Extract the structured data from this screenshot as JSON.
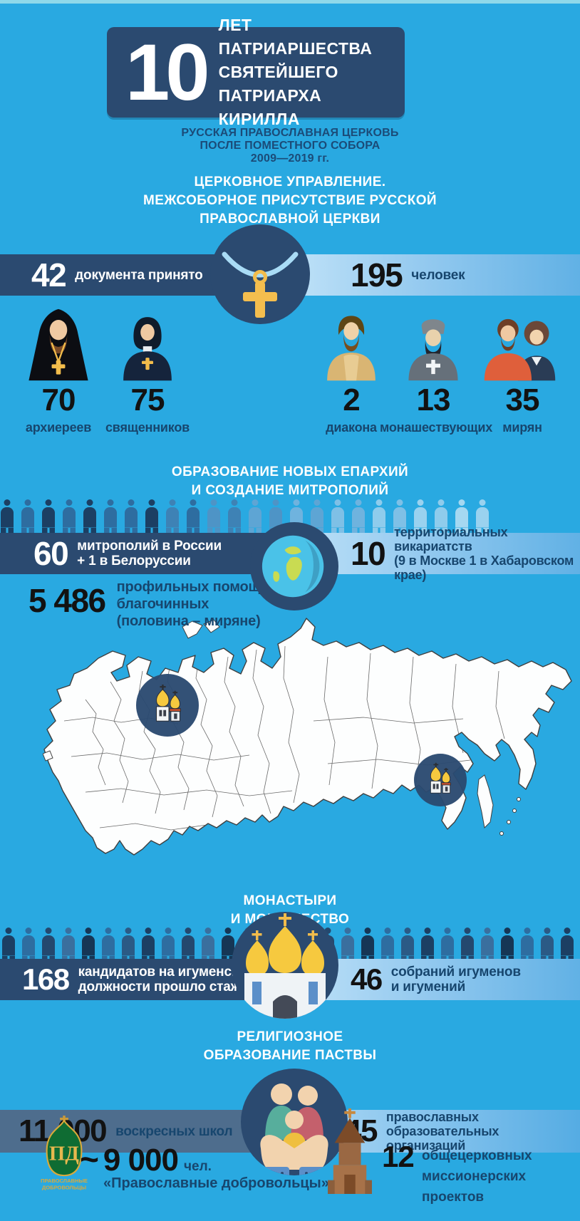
{
  "colors": {
    "background": "#29A9E1",
    "band_dark": "#2B4A70",
    "band_light": "#9CCEF0",
    "band_slate": "#4E6D8D",
    "text_navy": "#17466E",
    "number_black": "#121212",
    "gold": "#F2BC4B",
    "map_fill": "#FFFFFF",
    "badge_green": "#0F6C33"
  },
  "header": {
    "big_number": "10",
    "title_lines": [
      "ЛЕТ ПАТРИАРШЕСТВА",
      "СВЯТЕЙШЕГО ПАТРИАРХА",
      "КИРИЛЛА"
    ],
    "subtitle_lines": [
      "РУССКАЯ ПРАВОСЛАВНАЯ ЦЕРКОВЬ",
      "ПОСЛЕ ПОМЕСТНОГО СОБОРА",
      "2009—2019 гг."
    ]
  },
  "governance": {
    "heading_lines": [
      "ЦЕРКОВНОЕ УПРАВЛЕНИЕ.",
      "МЕЖСОБОРНОЕ ПРИСУТСТВИЕ РУССКОЙ",
      "ПРАВОСЛАВНОЙ ЦЕРКВИ"
    ],
    "docs": {
      "value": "42",
      "label": "документа принято"
    },
    "people": {
      "value": "195",
      "label": "человек"
    },
    "members": [
      {
        "value": "70",
        "label": "архиереев",
        "icon": "bishop-icon"
      },
      {
        "value": "75",
        "label": "священников",
        "icon": "priest-icon"
      },
      {
        "value": "2",
        "label": "диакона",
        "icon": "deacon-icon"
      },
      {
        "value": "13",
        "label": "монашествующих",
        "icon": "monk-icon"
      },
      {
        "value": "35",
        "label": "мирян",
        "icon": "laypeople-icon"
      }
    ]
  },
  "dioceses": {
    "heading_lines": [
      "ОБРАЗОВАНИЕ НОВЫХ ЕПАРХИЙ",
      "И СОЗДАНИЕ МИТРОПОЛИЙ"
    ],
    "metropolises": {
      "value": "60",
      "label_lines": [
        "митрополий в России",
        "+ 1 в Белоруссии"
      ]
    },
    "vicariates": {
      "value": "10",
      "label_lines": [
        "территориальных викариатств",
        "(9 в Москве 1 в Хабаровском крае)"
      ]
    },
    "assistants": {
      "value": "5 486",
      "label_lines": [
        "профильных помощника",
        "благочинных",
        "(половина – миряне)"
      ]
    }
  },
  "monasteries": {
    "heading_lines": [
      "МОНАСТЫРИ",
      "И МОНАШЕСТВО"
    ],
    "candidates": {
      "value": "168",
      "label_lines": [
        "кандидатов на игуменские",
        "должности прошло стажировку"
      ]
    },
    "assemblies": {
      "value": "46",
      "label_lines": [
        "собраний игуменов",
        "и игумений"
      ]
    }
  },
  "education": {
    "heading_lines": [
      "РЕЛИГИОЗНОЕ",
      "ОБРАЗОВАНИЕ ПАСТВЫ"
    ],
    "sunday_schools": {
      "value": "11 000",
      "label": "воскресных школ"
    },
    "orthodox_orgs": {
      "value": "145",
      "label_lines": [
        "православных",
        "образовательных организаций"
      ]
    },
    "volunteers": {
      "approx": "~",
      "value": "9 000",
      "unit": "чел.",
      "org": "«Православные добровольцы»",
      "badge": {
        "letters": "ПД",
        "lines": [
          "ПРАВОСЛАВНЫЕ",
          "ДОБРОВОЛЬЦЫ"
        ]
      }
    },
    "missionary": {
      "value": "12",
      "label_lines": [
        "общецерковных",
        "миссионерских проектов"
      ]
    }
  }
}
